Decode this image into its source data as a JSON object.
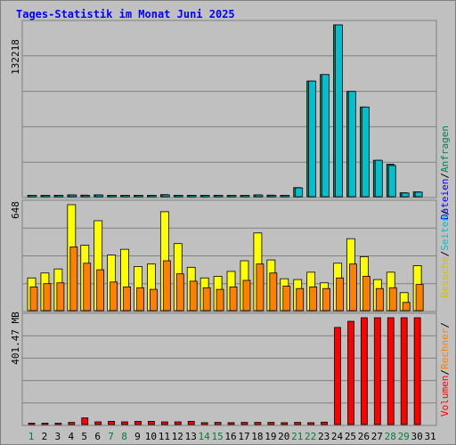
{
  "title": "Tages-Statistik im Monat Juni 2025",
  "colors": {
    "background": "#c0c0c0",
    "panel_border": "#808080",
    "title": "#0000ff",
    "anfragen": "#00805c",
    "dateien": "#0000ff",
    "seiten": "#00c0d0",
    "besuche": "#ffff00",
    "rechner": "#ff8000",
    "volumen": "#ff0000",
    "weekday": "#000000",
    "weekend": "#008040"
  },
  "legend": {
    "top": [
      "Anfragen",
      "Dateien"
    ],
    "middle": [
      "Seiten",
      "Besuche"
    ],
    "bottom": [
      "Rechner",
      "Volumen"
    ],
    "separator": "/"
  },
  "chart_data": [
    {
      "type": "bar",
      "name": "hits",
      "y_max_label": "132218",
      "ylim": [
        0,
        132218
      ],
      "categories": [
        "1",
        "2",
        "3",
        "4",
        "5",
        "6",
        "7",
        "8",
        "9",
        "10",
        "11",
        "12",
        "13",
        "14",
        "15",
        "16",
        "17",
        "18",
        "19",
        "20",
        "21",
        "22",
        "23",
        "24",
        "25",
        "26",
        "27",
        "28",
        "29",
        "30",
        "31"
      ],
      "weekend_days": [
        "1",
        "7",
        "8",
        "14",
        "15",
        "21",
        "22",
        "28",
        "29"
      ],
      "series": [
        {
          "name": "Anfragen",
          "values": [
            800,
            800,
            800,
            1400,
            1200,
            1400,
            900,
            800,
            800,
            900,
            1600,
            900,
            800,
            800,
            800,
            800,
            800,
            1400,
            1200,
            900,
            7000,
            89000,
            94000,
            132218,
            81000,
            69000,
            28000,
            25000,
            3000,
            3700,
            0
          ]
        },
        {
          "name": "Dateien",
          "values": [
            700,
            700,
            700,
            1300,
            1000,
            1300,
            800,
            700,
            700,
            800,
            1400,
            800,
            700,
            700,
            700,
            700,
            700,
            1300,
            1000,
            800,
            6800,
            89000,
            94000,
            132218,
            81000,
            69000,
            28000,
            24000,
            2800,
            3500,
            0
          ]
        }
      ]
    },
    {
      "type": "bar",
      "name": "visits",
      "y_max_label": "648",
      "ylim": [
        0,
        648
      ],
      "series": [
        {
          "name": "Besuche",
          "values": [
            200,
            230,
            255,
            648,
            400,
            550,
            340,
            375,
            270,
            285,
            605,
            410,
            265,
            200,
            210,
            240,
            305,
            475,
            310,
            195,
            190,
            235,
            170,
            290,
            440,
            330,
            190,
            235,
            110,
            275,
            0
          ]
        },
        {
          "name": "Rechner",
          "values": [
            145,
            165,
            170,
            390,
            290,
            250,
            175,
            145,
            140,
            130,
            305,
            225,
            180,
            140,
            130,
            145,
            185,
            285,
            230,
            150,
            135,
            145,
            135,
            200,
            285,
            210,
            135,
            140,
            50,
            160,
            0
          ]
        }
      ]
    },
    {
      "type": "bar",
      "name": "volume",
      "y_max_label": "401.47 MB",
      "ylim": [
        0,
        401.47
      ],
      "series": [
        {
          "name": "Volumen",
          "values": [
            4,
            4,
            4,
            8,
            25,
            10,
            12,
            10,
            12,
            12,
            10,
            10,
            12,
            7,
            8,
            7,
            8,
            8,
            8,
            7,
            8,
            7,
            9,
            365,
            388,
            401.47,
            401.47,
            401.47,
            401.47,
            401.47,
            0
          ]
        }
      ]
    }
  ]
}
